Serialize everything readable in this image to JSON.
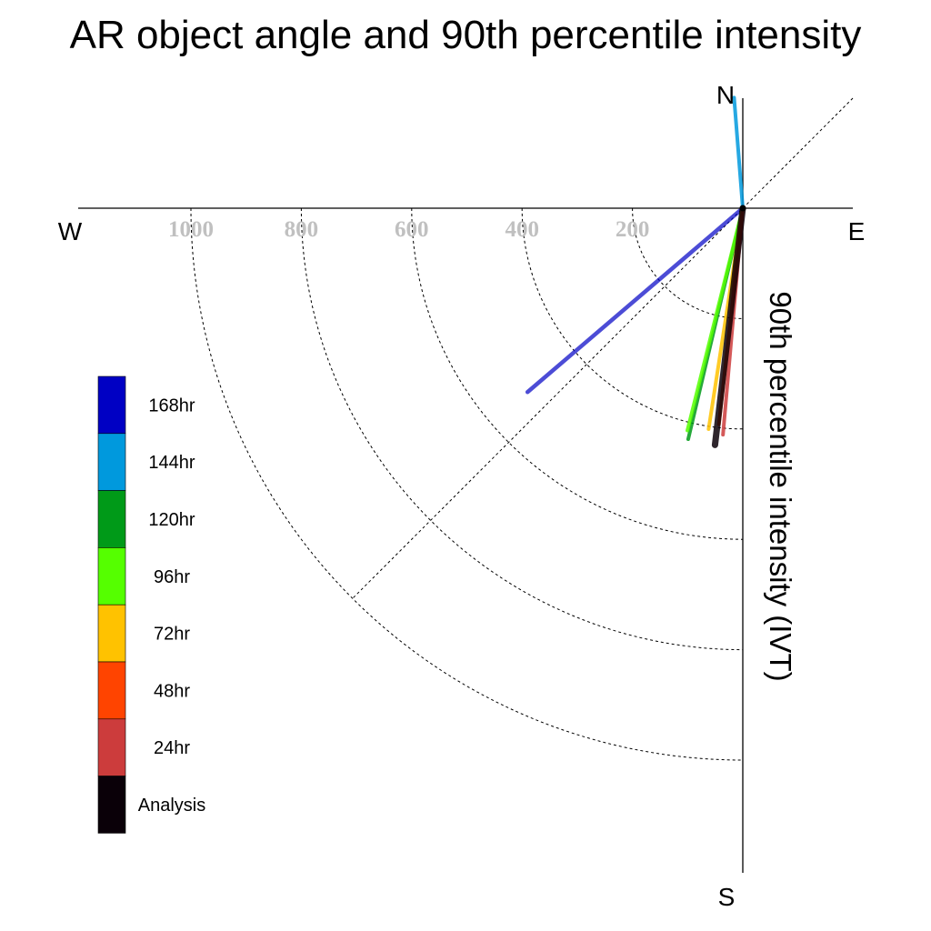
{
  "chart_data": {
    "type": "polar-vector",
    "title": "AR object angle and 90th percentile intensity",
    "ylabel": "90th percentile intensity (IVT)",
    "directions": {
      "north": "N",
      "south": "S",
      "east": "E",
      "west": "W"
    },
    "radial_ticks": [
      "200",
      "400",
      "600",
      "800",
      "1000"
    ],
    "radial_values": [
      200,
      400,
      600,
      800,
      1000
    ],
    "series": [
      {
        "name": "168hr",
        "color": "#0000c4",
        "angle_deg": 229.5,
        "intensity": 513
      },
      {
        "name": "144hr",
        "color": "#0099dd",
        "angle_deg": 355.5,
        "intensity": 201
      },
      {
        "name": "120hr",
        "color": "#009a18",
        "angle_deg": 193.3,
        "intensity": 430
      },
      {
        "name": "96hr",
        "color": "#55ff00",
        "angle_deg": 194.0,
        "intensity": 415
      },
      {
        "name": "72hr",
        "color": "#ffc200",
        "angle_deg": 188.8,
        "intensity": 405
      },
      {
        "name": "48hr",
        "color": "#ff4400",
        "angle_deg": 186.3,
        "intensity": 394
      },
      {
        "name": "24hr",
        "color": "#cc3c3c",
        "angle_deg": 185.0,
        "intensity": 412
      },
      {
        "name": "Analysis",
        "color": "#0a0008",
        "angle_deg": 186.7,
        "intensity": 432
      }
    ]
  }
}
